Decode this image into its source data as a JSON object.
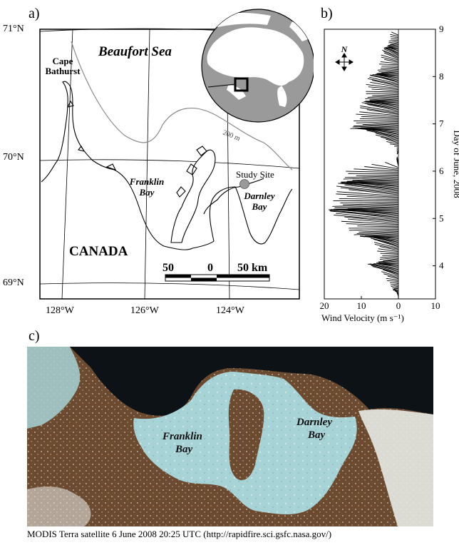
{
  "panels": {
    "a": "a)",
    "b": "b)",
    "c": "c)"
  },
  "map": {
    "lat_labels": [
      "71°N",
      "70°N",
      "69°N"
    ],
    "lon_labels": [
      "128°W",
      "126°W",
      "124°W"
    ],
    "place_labels": {
      "sea": "Beaufort Sea",
      "cape_line1": "Cape",
      "cape_line2": "Bathurst",
      "franklin_line1": "Franklin",
      "franklin_line2": "Bay",
      "darnley_line1": "Darnley",
      "darnley_line2": "Bay",
      "country": "CANADA",
      "study_site": "Study Site",
      "isobath": "200 m"
    },
    "scale_bar": {
      "left": "50",
      "mid": "0",
      "right": "50 km"
    },
    "colors": {
      "coast": "#000000",
      "isobath": "#8a8a8a",
      "site": "#9a9a9a",
      "land": "#9a9a9a",
      "inset_water": "#ffffff"
    }
  },
  "wind": {
    "north_label": "N",
    "xlabel": "Wind Velocity (m s⁻¹)",
    "ylabel": "Day of June, 2008",
    "x_ticks": [
      "20",
      "10",
      "0",
      "10"
    ],
    "y_ticks": [
      "4",
      "5",
      "6",
      "7",
      "8",
      "9"
    ],
    "chart_data": {
      "type": "area",
      "x_axis": "wind speed (m/s), plotted leftward from 0",
      "y_axis": "day of June 2008",
      "xlim": [
        20,
        -10
      ],
      "ylim": [
        3.3,
        9
      ],
      "days": [
        3.35,
        3.6,
        3.8,
        3.9,
        4.0,
        4.2,
        4.5,
        4.7,
        4.9,
        5.0,
        5.1,
        5.3,
        5.5,
        5.7,
        5.9,
        6.0,
        6.1,
        6.3,
        6.5,
        6.7,
        6.9,
        7.1,
        7.3,
        7.5,
        7.7,
        7.9,
        8.1,
        8.3,
        8.5,
        8.7,
        8.9
      ],
      "speed": [
        0.5,
        2,
        5,
        9,
        7,
        5,
        8,
        12,
        16,
        19,
        19,
        18,
        17,
        16,
        15,
        14,
        0.5,
        0.3,
        0.5,
        8,
        13,
        12,
        10,
        9,
        9,
        8,
        6,
        5,
        4,
        3,
        2
      ]
    }
  },
  "photo": {
    "labels": {
      "franklin_line1": "Franklin",
      "franklin_line2": "Bay",
      "darnley_line1": "Darnley",
      "darnley_line2": "Bay"
    },
    "colors": {
      "land": "#6b4a30",
      "ice": "#a7d3d6",
      "water": "#0c1216",
      "cloud": "#f3f4f2"
    }
  },
  "caption": "MODIS Terra satellite 6 June 2008 20:25 UTC (http://rapidfire.sci.gsfc.nasa.gov/)"
}
